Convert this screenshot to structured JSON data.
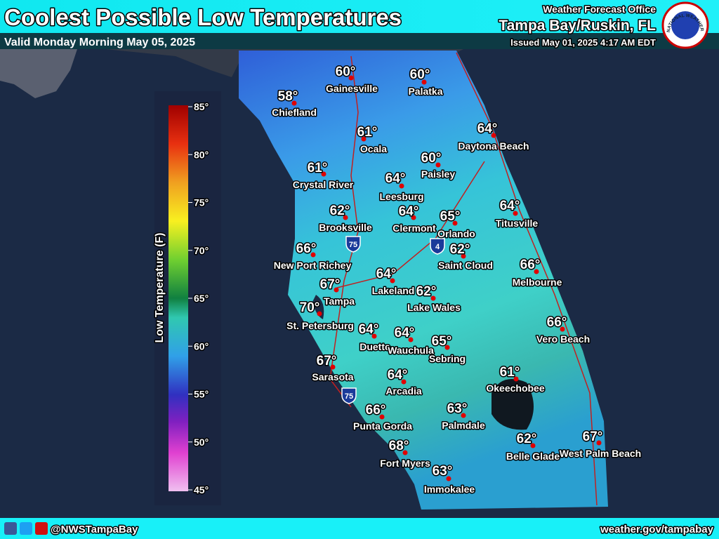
{
  "header": {
    "title": "Coolest Possible Low Temperatures",
    "valid": "Valid Monday Morning May 05, 2025",
    "office_line1": "Weather Forecast Office",
    "office_line2": "Tampa Bay/Ruskin, FL",
    "issued": "Issued May 01, 2025 4:17 AM EDT",
    "logo_text": "NATIONAL WEATHER SERVICE"
  },
  "legend": {
    "title": "Low Temperature (F)",
    "ticks": [
      "85°",
      "80°",
      "75°",
      "70°",
      "65°",
      "60°",
      "55°",
      "50°",
      "45°"
    ]
  },
  "map": {
    "shields": [
      "75",
      "4",
      "75"
    ],
    "cities": [
      {
        "name": "Gainesville",
        "temp": "60°"
      },
      {
        "name": "Palatka",
        "temp": "60°"
      },
      {
        "name": "Chiefland",
        "temp": "58°"
      },
      {
        "name": "Ocala",
        "temp": "61°"
      },
      {
        "name": "Daytona Beach",
        "temp": "64°"
      },
      {
        "name": "Paisley",
        "temp": "60°"
      },
      {
        "name": "Crystal River",
        "temp": "61°"
      },
      {
        "name": "Leesburg",
        "temp": "64°"
      },
      {
        "name": "Titusville",
        "temp": "64°"
      },
      {
        "name": "Brooksville",
        "temp": "62°"
      },
      {
        "name": "Clermont",
        "temp": "64°"
      },
      {
        "name": "Orlando",
        "temp": "65°"
      },
      {
        "name": "Saint Cloud",
        "temp": "62°"
      },
      {
        "name": "New Port Richey",
        "temp": "66°"
      },
      {
        "name": "Melbourne",
        "temp": "66°"
      },
      {
        "name": "Lakeland",
        "temp": "64°"
      },
      {
        "name": "Tampa",
        "temp": "67°"
      },
      {
        "name": "Lake Wales",
        "temp": "62°"
      },
      {
        "name": "St. Petersburg",
        "temp": "70°"
      },
      {
        "name": "Vero Beach",
        "temp": "66°"
      },
      {
        "name": "Duette",
        "temp": "64°"
      },
      {
        "name": "Wauchula",
        "temp": "64°"
      },
      {
        "name": "Sebring",
        "temp": "65°"
      },
      {
        "name": "Sarasota",
        "temp": "67°"
      },
      {
        "name": "Okeechobee",
        "temp": "61°"
      },
      {
        "name": "Arcadia",
        "temp": "64°"
      },
      {
        "name": "Punta Gorda",
        "temp": "66°"
      },
      {
        "name": "Palmdale",
        "temp": "63°"
      },
      {
        "name": "Belle Glade",
        "temp": "62°"
      },
      {
        "name": "West Palm Beach",
        "temp": "67°"
      },
      {
        "name": "Fort Myers",
        "temp": "68°"
      },
      {
        "name": "Immokalee",
        "temp": "63°"
      }
    ]
  },
  "footer": {
    "handle": "@NWSTampaBay",
    "url": "weather.gov/tampabay"
  }
}
